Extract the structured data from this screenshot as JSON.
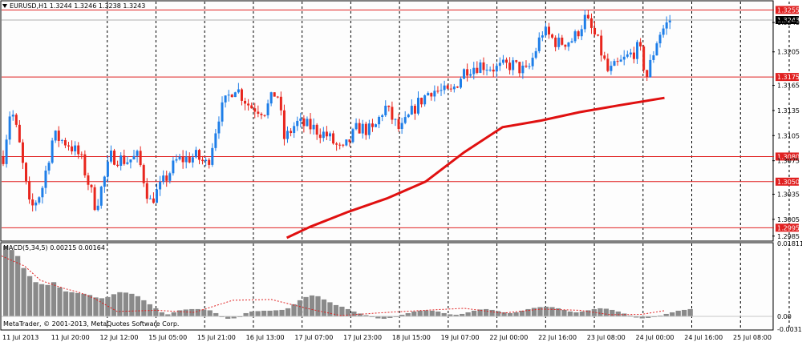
{
  "window": {
    "symbol_header": "EURUSD,H1",
    "ohlc_header": "1.3244 1.3246 1.3238 1.3243",
    "copyright": "MetaTrader, © 2001-2013, MetaQuotes Software Corp."
  },
  "indicator": {
    "label": "MACD(5,34,5) 0.00215 0.00164",
    "scale": [
      "0.01811",
      "0.00",
      "-0.00319"
    ]
  },
  "price_scale": [
    "1.3240",
    "1.3205",
    "1.3165",
    "1.3135",
    "1.3105",
    "1.3075",
    "1.3035",
    "1.3005",
    "1.2985"
  ],
  "level_lines": [
    {
      "price": 1.3255,
      "label": "1.3255",
      "color": "#e02020"
    },
    {
      "price": 1.3175,
      "label": "1.3175",
      "color": "#e02020"
    },
    {
      "price": 1.308,
      "label": "1.3080",
      "color": "#e02020"
    },
    {
      "price": 1.305,
      "label": "1.3050",
      "color": "#e02020"
    },
    {
      "price": 1.2995,
      "label": "1.2995",
      "color": "#e02020"
    }
  ],
  "current_price": {
    "label": "1.3243",
    "price": 1.3243
  },
  "time_axis": [
    "11 Jul 2013",
    "11 Jul 20:00",
    "12 Jul 12:00",
    "15 Jul 05:00",
    "15 Jul 21:00",
    "16 Jul 13:00",
    "17 Jul 07:00",
    "17 Jul 23:00",
    "18 Jul 15:00",
    "19 Jul 07:00",
    "22 Jul 00:00",
    "22 Jul 16:00",
    "23 Jul 08:00",
    "24 Jul 00:00",
    "24 Jul 16:00",
    "25 Jul 08:00"
  ],
  "colors": {
    "bull": "#1e7ee8",
    "bear": "#e8261e",
    "level": "#e02020",
    "moving_average": "#e01010",
    "grid": "#000000",
    "macd_hist": "#8a8a8a",
    "macd_signal": "#e02020"
  },
  "chart_data": [
    {
      "type": "candlestick",
      "title": "EURUSD,H1",
      "y_range": [
        1.298,
        1.3265
      ],
      "moving_average_points": [
        [
          0.37,
          1.2983
        ],
        [
          0.4,
          1.2996
        ],
        [
          0.45,
          1.3014
        ],
        [
          0.5,
          1.303
        ],
        [
          0.55,
          1.305
        ],
        [
          0.6,
          1.3085
        ],
        [
          0.65,
          1.3115
        ],
        [
          0.7,
          1.3123
        ],
        [
          0.75,
          1.3133
        ],
        [
          0.8,
          1.3141
        ],
        [
          0.86,
          1.315
        ]
      ],
      "segments": [
        {
          "t": 0.0,
          "price": 1.308
        },
        {
          "t": 0.01,
          "price": 1.314
        },
        {
          "t": 0.02,
          "price": 1.31
        },
        {
          "t": 0.035,
          "price": 1.3015
        },
        {
          "t": 0.05,
          "price": 1.304
        },
        {
          "t": 0.065,
          "price": 1.3105
        },
        {
          "t": 0.085,
          "price": 1.3095
        },
        {
          "t": 0.1,
          "price": 1.308
        },
        {
          "t": 0.12,
          "price": 1.302
        },
        {
          "t": 0.14,
          "price": 1.308
        },
        {
          "t": 0.16,
          "price": 1.3075
        },
        {
          "t": 0.175,
          "price": 1.308
        },
        {
          "t": 0.19,
          "price": 1.3025
        },
        {
          "t": 0.205,
          "price": 1.3045
        },
        {
          "t": 0.225,
          "price": 1.3075
        },
        {
          "t": 0.25,
          "price": 1.308
        },
        {
          "t": 0.265,
          "price": 1.307
        },
        {
          "t": 0.28,
          "price": 1.313
        },
        {
          "t": 0.3,
          "price": 1.3165
        },
        {
          "t": 0.32,
          "price": 1.314
        },
        {
          "t": 0.34,
          "price": 1.3135
        },
        {
          "t": 0.355,
          "price": 1.316
        },
        {
          "t": 0.365,
          "price": 1.31
        },
        {
          "t": 0.38,
          "price": 1.312
        },
        {
          "t": 0.4,
          "price": 1.3115
        },
        {
          "t": 0.42,
          "price": 1.3105
        },
        {
          "t": 0.44,
          "price": 1.3085
        },
        {
          "t": 0.46,
          "price": 1.3115
        },
        {
          "t": 0.48,
          "price": 1.311
        },
        {
          "t": 0.495,
          "price": 1.314
        },
        {
          "t": 0.515,
          "price": 1.311
        },
        {
          "t": 0.535,
          "price": 1.314
        },
        {
          "t": 0.555,
          "price": 1.316
        },
        {
          "t": 0.58,
          "price": 1.3155
        },
        {
          "t": 0.6,
          "price": 1.3185
        },
        {
          "t": 0.62,
          "price": 1.319
        },
        {
          "t": 0.64,
          "price": 1.3185
        },
        {
          "t": 0.66,
          "price": 1.319
        },
        {
          "t": 0.68,
          "price": 1.318
        },
        {
          "t": 0.7,
          "price": 1.323
        },
        {
          "t": 0.72,
          "price": 1.3215
        },
        {
          "t": 0.74,
          "price": 1.322
        },
        {
          "t": 0.755,
          "price": 1.3245
        },
        {
          "t": 0.77,
          "price": 1.322
        },
        {
          "t": 0.785,
          "price": 1.318
        },
        {
          "t": 0.805,
          "price": 1.3195
        },
        {
          "t": 0.825,
          "price": 1.321
        },
        {
          "t": 0.835,
          "price": 1.3175
        },
        {
          "t": 0.85,
          "price": 1.3225
        },
        {
          "t": 0.865,
          "price": 1.3243
        }
      ]
    },
    {
      "type": "bar",
      "title": "MACD(5,34,5)",
      "y_range": [
        -0.00319,
        0.01811
      ],
      "histogram": [
        0.0175,
        0.0165,
        0.015,
        0.012,
        0.01,
        0.0085,
        0.008,
        0.0078,
        0.0085,
        0.0072,
        0.0062,
        0.006,
        0.0058,
        0.0056,
        0.0053,
        0.0047,
        0.0045,
        0.0048,
        0.0055,
        0.006,
        0.0059,
        0.0056,
        0.005,
        0.004,
        0.003,
        0.002,
        0.001,
        0.0005,
        0.001,
        0.0015,
        0.0017,
        0.0018,
        0.0018,
        0.0017,
        0.0015,
        0.0008,
        -0.0002,
        -0.0006,
        -0.0005,
        -0.0002,
        0.0008,
        0.0012,
        0.0013,
        0.0014,
        0.0014,
        0.0015,
        0.0016,
        0.002,
        0.003,
        0.004,
        0.0048,
        0.0052,
        0.005,
        0.0042,
        0.0035,
        0.0028,
        0.0024,
        0.0018,
        0.0012,
        0.0007,
        0.0003,
        -0.0002,
        -0.0005,
        -0.0006,
        -0.0004,
        0.0,
        0.0004,
        0.0008,
        0.0012,
        0.0014,
        0.0015,
        0.0014,
        0.0012,
        0.0008,
        0.0005,
        0.0004,
        0.0006,
        0.001,
        0.0014,
        0.0017,
        0.0018,
        0.0016,
        0.0013,
        0.001,
        0.0008,
        0.001,
        0.0014,
        0.0018,
        0.0021,
        0.0023,
        0.0024,
        0.0023,
        0.002,
        0.0016,
        0.0012,
        0.001,
        0.0012,
        0.0015,
        0.0018,
        0.002,
        0.0019,
        0.0016,
        0.0012,
        0.0007,
        0.0002,
        -0.0003,
        -0.0005,
        -0.0004,
        -0.0002,
        0.0002,
        0.0006,
        0.001,
        0.0014,
        0.0016,
        0.0018
      ],
      "signal_line": [
        [
          0.0,
          0.015
        ],
        [
          0.03,
          0.0125
        ],
        [
          0.05,
          0.009
        ],
        [
          0.08,
          0.007
        ],
        [
          0.1,
          0.006
        ],
        [
          0.12,
          0.0045
        ],
        [
          0.15,
          0.0012
        ],
        [
          0.2,
          0.0015
        ],
        [
          0.25,
          0.001
        ],
        [
          0.3,
          0.004
        ],
        [
          0.35,
          0.0042
        ],
        [
          0.4,
          0.0018
        ],
        [
          0.44,
          0.0002
        ],
        [
          0.5,
          0.001
        ],
        [
          0.55,
          0.0015
        ],
        [
          0.6,
          0.002
        ],
        [
          0.65,
          0.0008
        ],
        [
          0.7,
          0.0018
        ],
        [
          0.75,
          0.0015
        ],
        [
          0.79,
          0.0004
        ],
        [
          0.83,
          0.0005
        ],
        [
          0.86,
          0.0014
        ]
      ]
    }
  ]
}
